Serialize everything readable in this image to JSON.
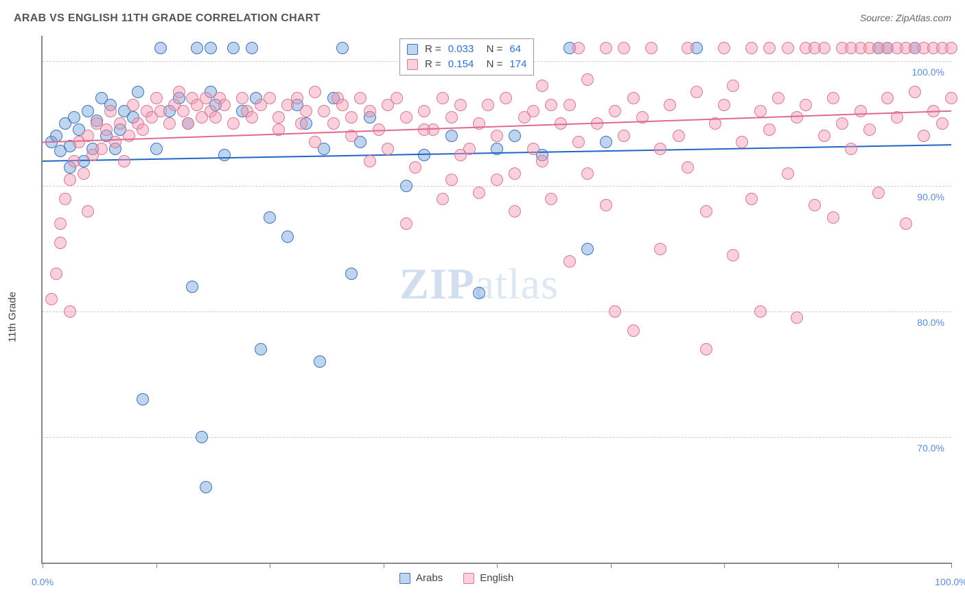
{
  "title": "ARAB VS ENGLISH 11TH GRADE CORRELATION CHART",
  "source": "Source: ZipAtlas.com",
  "watermark_zip": "ZIP",
  "watermark_atlas": "atlas",
  "y_axis_label": "11th Grade",
  "chart": {
    "type": "scatter",
    "background_color": "#ffffff",
    "grid_color": "#cccccc",
    "axis_color": "#888888",
    "xlim": [
      0,
      100
    ],
    "ylim": [
      60,
      102
    ],
    "x_ticks": [
      0,
      12.5,
      25,
      37.5,
      50,
      62.5,
      75,
      87.5,
      100
    ],
    "x_tick_labels": {
      "0": "0.0%",
      "100": "100.0%"
    },
    "y_ticks": [
      70,
      80,
      90,
      100
    ],
    "y_tick_labels": {
      "70": "70.0%",
      "80": "80.0%",
      "90": "90.0%",
      "100": "100.0%"
    },
    "point_radius": 9,
    "point_border_width": 1,
    "series": [
      {
        "name": "Arabs",
        "fill": "rgba(110,160,220,0.45)",
        "stroke": "#3d72b8",
        "trend_color": "#1f66c7",
        "trend_width": 2,
        "trend": {
          "y_at_x0": 92.0,
          "y_at_x100": 93.3
        },
        "points": [
          [
            1,
            93.5
          ],
          [
            1.5,
            94.0
          ],
          [
            2,
            92.8
          ],
          [
            2.5,
            95.0
          ],
          [
            3,
            93.2
          ],
          [
            3,
            91.5
          ],
          [
            3.5,
            95.5
          ],
          [
            4,
            94.5
          ],
          [
            4.5,
            92.0
          ],
          [
            5,
            96.0
          ],
          [
            5.5,
            93.0
          ],
          [
            6,
            95.2
          ],
          [
            6.5,
            97.0
          ],
          [
            7,
            94.0
          ],
          [
            7.5,
            96.5
          ],
          [
            8,
            93.0
          ],
          [
            8.5,
            94.5
          ],
          [
            9,
            96.0
          ],
          [
            10,
            95.5
          ],
          [
            10.5,
            97.5
          ],
          [
            11,
            73.0
          ],
          [
            12.5,
            93.0
          ],
          [
            13,
            101.0
          ],
          [
            14,
            96.0
          ],
          [
            15,
            97.0
          ],
          [
            16,
            95.0
          ],
          [
            16.5,
            82.0
          ],
          [
            17,
            101.0
          ],
          [
            17.5,
            70.0
          ],
          [
            18,
            66.0
          ],
          [
            18.5,
            97.5
          ],
          [
            18.5,
            101.0
          ],
          [
            19,
            96.5
          ],
          [
            20,
            92.5
          ],
          [
            21,
            101.0
          ],
          [
            22,
            96.0
          ],
          [
            23,
            101.0
          ],
          [
            23.5,
            97.0
          ],
          [
            24,
            77.0
          ],
          [
            25,
            87.5
          ],
          [
            27,
            86.0
          ],
          [
            28,
            96.5
          ],
          [
            29,
            95.0
          ],
          [
            30.5,
            76.0
          ],
          [
            31,
            93.0
          ],
          [
            32,
            97.0
          ],
          [
            33,
            101.0
          ],
          [
            34,
            83.0
          ],
          [
            35,
            93.5
          ],
          [
            36,
            95.5
          ],
          [
            40,
            90.0
          ],
          [
            42,
            92.5
          ],
          [
            45,
            94.0
          ],
          [
            48,
            81.5
          ],
          [
            50,
            93.0
          ],
          [
            52,
            94.0
          ],
          [
            55,
            92.5
          ],
          [
            58,
            101.0
          ],
          [
            60,
            85.0
          ],
          [
            62,
            93.5
          ],
          [
            72,
            101.0
          ],
          [
            92,
            101.0
          ],
          [
            93,
            101.0
          ],
          [
            96,
            101.0
          ]
        ]
      },
      {
        "name": "English",
        "fill": "rgba(242,150,175,0.45)",
        "stroke": "#d77a94",
        "trend_color": "#e06a8f",
        "trend_width": 2,
        "trend": {
          "y_at_x0": 93.5,
          "y_at_x100": 96.0
        },
        "points": [
          [
            1,
            81.0
          ],
          [
            1.5,
            83.0
          ],
          [
            2,
            85.5
          ],
          [
            2,
            87.0
          ],
          [
            2.5,
            89.0
          ],
          [
            3,
            90.5
          ],
          [
            3,
            80.0
          ],
          [
            3.5,
            92.0
          ],
          [
            4,
            93.5
          ],
          [
            4.5,
            91.0
          ],
          [
            5,
            94.0
          ],
          [
            5,
            88.0
          ],
          [
            5.5,
            92.5
          ],
          [
            6,
            95.0
          ],
          [
            6.5,
            93.0
          ],
          [
            7,
            94.5
          ],
          [
            7.5,
            96.0
          ],
          [
            8,
            93.5
          ],
          [
            8.5,
            95.0
          ],
          [
            9,
            92.0
          ],
          [
            9.5,
            94.0
          ],
          [
            10,
            96.5
          ],
          [
            10.5,
            95.0
          ],
          [
            11,
            94.5
          ],
          [
            11.5,
            96.0
          ],
          [
            12,
            95.5
          ],
          [
            12.5,
            97.0
          ],
          [
            13,
            96.0
          ],
          [
            14,
            95.0
          ],
          [
            14.5,
            96.5
          ],
          [
            15,
            97.5
          ],
          [
            15.5,
            96.0
          ],
          [
            16,
            95.0
          ],
          [
            16.5,
            97.0
          ],
          [
            17,
            96.5
          ],
          [
            17.5,
            95.5
          ],
          [
            18,
            97.0
          ],
          [
            18.5,
            96.0
          ],
          [
            19,
            95.5
          ],
          [
            19.5,
            97.0
          ],
          [
            20,
            96.5
          ],
          [
            21,
            95.0
          ],
          [
            22,
            97.0
          ],
          [
            22.5,
            96.0
          ],
          [
            23,
            95.5
          ],
          [
            24,
            96.5
          ],
          [
            25,
            97.0
          ],
          [
            26,
            95.5
          ],
          [
            27,
            96.5
          ],
          [
            28,
            97.0
          ],
          [
            28.5,
            95.0
          ],
          [
            29,
            96.0
          ],
          [
            30,
            97.5
          ],
          [
            31,
            96.0
          ],
          [
            32,
            95.0
          ],
          [
            32.5,
            97.0
          ],
          [
            33,
            96.5
          ],
          [
            34,
            95.5
          ],
          [
            35,
            97.0
          ],
          [
            36,
            96.0
          ],
          [
            37,
            94.5
          ],
          [
            38,
            96.5
          ],
          [
            39,
            97.0
          ],
          [
            40,
            95.5
          ],
          [
            40,
            87.0
          ],
          [
            41,
            91.5
          ],
          [
            42,
            96.0
          ],
          [
            43,
            94.5
          ],
          [
            44,
            97.0
          ],
          [
            45,
            95.5
          ],
          [
            45,
            90.5
          ],
          [
            46,
            96.5
          ],
          [
            47,
            93.0
          ],
          [
            48,
            95.0
          ],
          [
            48,
            89.5
          ],
          [
            49,
            96.5
          ],
          [
            50,
            94.0
          ],
          [
            51,
            97.0
          ],
          [
            52,
            91.0
          ],
          [
            53,
            95.5
          ],
          [
            54,
            96.0
          ],
          [
            55,
            92.0
          ],
          [
            55,
            98.0
          ],
          [
            56,
            89.0
          ],
          [
            57,
            95.0
          ],
          [
            58,
            96.5
          ],
          [
            58,
            84.0
          ],
          [
            59,
            93.5
          ],
          [
            60,
            91.0
          ],
          [
            60,
            98.5
          ],
          [
            61,
            95.0
          ],
          [
            62,
            88.5
          ],
          [
            63,
            96.0
          ],
          [
            63,
            80.0
          ],
          [
            64,
            94.0
          ],
          [
            65,
            97.0
          ],
          [
            65,
            78.5
          ],
          [
            66,
            95.5
          ],
          [
            67,
            101.0
          ],
          [
            68,
            93.0
          ],
          [
            68,
            85.0
          ],
          [
            69,
            96.5
          ],
          [
            70,
            94.0
          ],
          [
            71,
            101.0
          ],
          [
            71,
            91.5
          ],
          [
            72,
            97.5
          ],
          [
            73,
            88.0
          ],
          [
            73,
            77.0
          ],
          [
            74,
            95.0
          ],
          [
            75,
            96.5
          ],
          [
            75,
            101.0
          ],
          [
            76,
            84.5
          ],
          [
            76,
            98.0
          ],
          [
            77,
            93.5
          ],
          [
            78,
            101.0
          ],
          [
            78,
            89.0
          ],
          [
            79,
            96.0
          ],
          [
            79,
            80.0
          ],
          [
            80,
            94.5
          ],
          [
            80,
            101.0
          ],
          [
            81,
            97.0
          ],
          [
            82,
            91.0
          ],
          [
            82,
            101.0
          ],
          [
            83,
            95.5
          ],
          [
            83,
            79.5
          ],
          [
            84,
            101.0
          ],
          [
            84,
            96.5
          ],
          [
            85,
            88.5
          ],
          [
            85,
            101.0
          ],
          [
            86,
            94.0
          ],
          [
            86,
            101.0
          ],
          [
            87,
            97.0
          ],
          [
            87,
            87.5
          ],
          [
            88,
            101.0
          ],
          [
            88,
            95.0
          ],
          [
            89,
            101.0
          ],
          [
            89,
            93.0
          ],
          [
            90,
            101.0
          ],
          [
            90,
            96.0
          ],
          [
            91,
            101.0
          ],
          [
            91,
            94.5
          ],
          [
            92,
            101.0
          ],
          [
            92,
            89.5
          ],
          [
            93,
            101.0
          ],
          [
            93,
            97.0
          ],
          [
            94,
            101.0
          ],
          [
            94,
            95.5
          ],
          [
            95,
            101.0
          ],
          [
            95,
            87.0
          ],
          [
            96,
            101.0
          ],
          [
            96,
            97.5
          ],
          [
            97,
            101.0
          ],
          [
            97,
            94.0
          ],
          [
            98,
            101.0
          ],
          [
            98,
            96.0
          ],
          [
            99,
            101.0
          ],
          [
            99,
            95.0
          ],
          [
            100,
            101.0
          ],
          [
            100,
            97.0
          ],
          [
            59,
            101.0
          ],
          [
            62,
            101.0
          ],
          [
            64,
            101.0
          ],
          [
            56,
            96.5
          ],
          [
            54,
            93.0
          ],
          [
            52,
            88.0
          ],
          [
            50,
            90.5
          ],
          [
            46,
            92.5
          ],
          [
            44,
            89.0
          ],
          [
            42,
            94.5
          ],
          [
            38,
            93.0
          ],
          [
            36,
            92.0
          ],
          [
            34,
            94.0
          ],
          [
            30,
            93.5
          ],
          [
            26,
            94.5
          ]
        ]
      }
    ],
    "legend_top": [
      {
        "swatch_fill": "rgba(110,160,220,0.45)",
        "swatch_stroke": "#3d72b8",
        "r_label": "R =",
        "r": "0.033",
        "n_label": "N =",
        "n": "64"
      },
      {
        "swatch_fill": "rgba(242,150,175,0.45)",
        "swatch_stroke": "#d77a94",
        "r_label": "R =",
        "r": "0.154",
        "n_label": "N =",
        "n": "174"
      }
    ],
    "legend_bottom": [
      {
        "swatch_fill": "rgba(110,160,220,0.45)",
        "swatch_stroke": "#3d72b8",
        "label": "Arabs"
      },
      {
        "swatch_fill": "rgba(242,150,175,0.45)",
        "swatch_stroke": "#d77a94",
        "label": "English"
      }
    ]
  }
}
